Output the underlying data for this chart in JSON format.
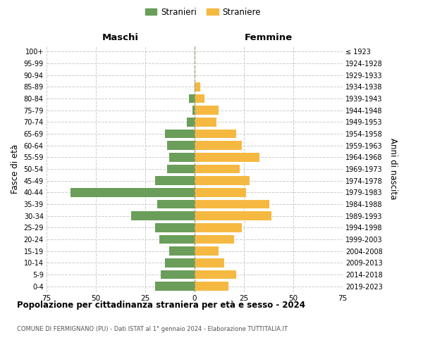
{
  "age_groups": [
    "0-4",
    "5-9",
    "10-14",
    "15-19",
    "20-24",
    "25-29",
    "30-34",
    "35-39",
    "40-44",
    "45-49",
    "50-54",
    "55-59",
    "60-64",
    "65-69",
    "70-74",
    "75-79",
    "80-84",
    "85-89",
    "90-94",
    "95-99",
    "100+"
  ],
  "birth_years": [
    "2019-2023",
    "2014-2018",
    "2009-2013",
    "2004-2008",
    "1999-2003",
    "1994-1998",
    "1989-1993",
    "1984-1988",
    "1979-1983",
    "1974-1978",
    "1969-1973",
    "1964-1968",
    "1959-1963",
    "1954-1958",
    "1949-1953",
    "1944-1948",
    "1939-1943",
    "1934-1938",
    "1929-1933",
    "1924-1928",
    "≤ 1923"
  ],
  "maschi": [
    20,
    17,
    15,
    13,
    18,
    20,
    32,
    19,
    63,
    20,
    14,
    13,
    14,
    15,
    4,
    1,
    3,
    0,
    0,
    0,
    0
  ],
  "femmine": [
    17,
    21,
    15,
    12,
    20,
    24,
    39,
    38,
    26,
    28,
    23,
    33,
    24,
    21,
    11,
    12,
    5,
    3,
    0,
    0,
    0
  ],
  "color_maschi": "#6a9e5a",
  "color_femmine": "#f5b942",
  "background_color": "#ffffff",
  "grid_color": "#cccccc",
  "title": "Popolazione per cittadinanza straniera per età e sesso - 2024",
  "subtitle": "COMUNE DI FERMIGNANO (PU) - Dati ISTAT al 1° gennaio 2024 - Elaborazione TUTTITALIA.IT",
  "xlabel_left": "Maschi",
  "xlabel_right": "Femmine",
  "ylabel_left": "Fasce di età",
  "ylabel_right": "Anni di nascita",
  "legend_maschi": "Stranieri",
  "legend_femmine": "Straniere",
  "xlim": 75,
  "bar_height": 0.75
}
